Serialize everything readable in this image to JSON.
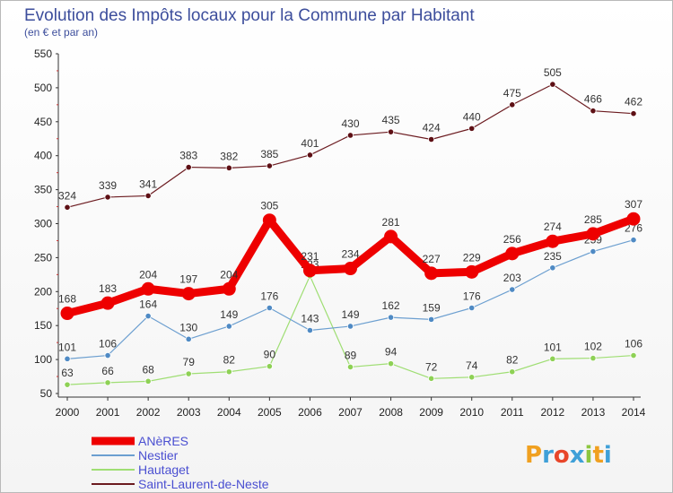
{
  "chart_data": {
    "type": "line",
    "title": "Evolution des Impôts locaux pour la Commune par Habitant",
    "subtitle": "(en € et par an)",
    "categories": [
      "2000",
      "2001",
      "2002",
      "2003",
      "2004",
      "2005",
      "2006",
      "2007",
      "2008",
      "2009",
      "2010",
      "2011",
      "2012",
      "2013",
      "2014"
    ],
    "ylim": [
      50,
      550
    ],
    "yticks": [
      50,
      100,
      150,
      200,
      250,
      300,
      350,
      400,
      450,
      500,
      550
    ],
    "grid": false,
    "legend_position": "bottom-left",
    "series": [
      {
        "name": "Saint-Laurent-de-Neste",
        "color": "#6b1a1f",
        "values": [
          324,
          339,
          341,
          383,
          382,
          385,
          401,
          430,
          435,
          424,
          440,
          475,
          505,
          466,
          462
        ]
      },
      {
        "name": "Hautaget",
        "color": "#9fde73",
        "values": [
          63,
          66,
          68,
          79,
          82,
          90,
          223,
          89,
          94,
          72,
          74,
          82,
          101,
          102,
          106
        ]
      },
      {
        "name": "Nestier",
        "color": "#6c9fd0",
        "values": [
          101,
          106,
          164,
          130,
          149,
          176,
          143,
          149,
          162,
          159,
          176,
          203,
          235,
          259,
          276
        ]
      },
      {
        "name": "ANèRES",
        "color": "#ee0000",
        "values": [
          168,
          183,
          204,
          197,
          204,
          305,
          231,
          234,
          281,
          227,
          229,
          256,
          274,
          285,
          307
        ]
      }
    ]
  },
  "logo": {
    "text": "Proxiti"
  }
}
